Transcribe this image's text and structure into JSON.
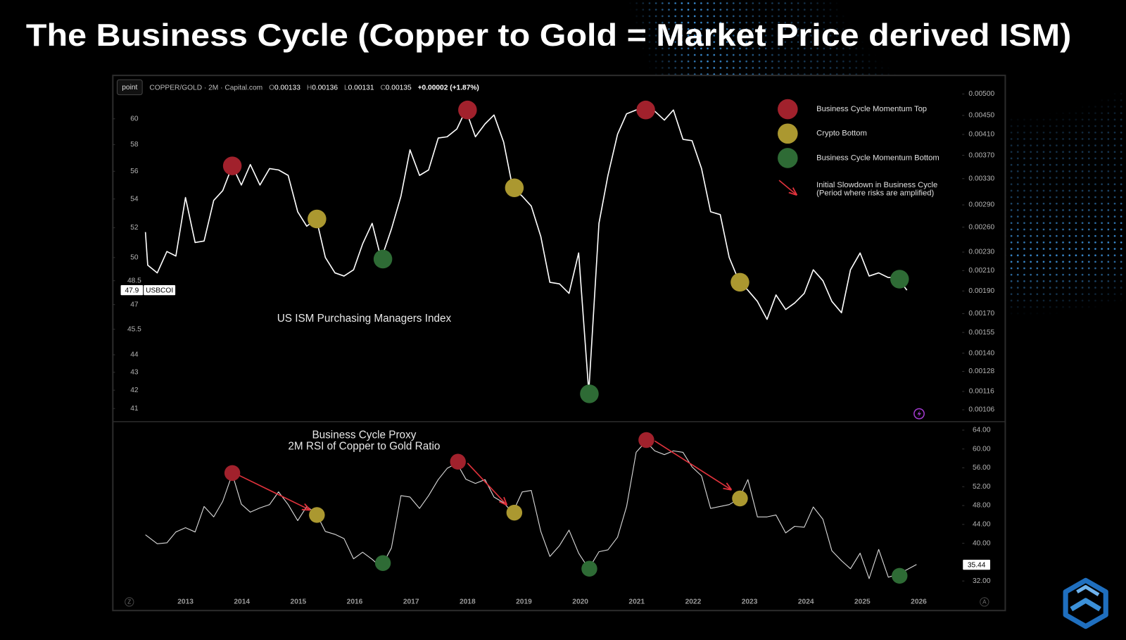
{
  "title": "The Business Cycle (Copper to Gold = Market Price derived ISM)",
  "header": {
    "button": "point",
    "symbol": "COPPER/GOLD · 2M · Capital.com",
    "ohlc": [
      {
        "key": "O",
        "value": "0.00133"
      },
      {
        "key": "H",
        "value": "0.00136"
      },
      {
        "key": "L",
        "value": "0.00131"
      },
      {
        "key": "C",
        "value": "0.00135"
      }
    ],
    "change": "+0.00002 (+1.87%)"
  },
  "controls": {
    "left": "Z",
    "right": "A"
  },
  "chart_data": [
    {
      "type": "line",
      "caption": "US ISM Purchasing Managers Index",
      "x": [
        2012.29,
        2012.33,
        2012.5,
        2012.67,
        2012.83,
        2013.0,
        2013.17,
        2013.33,
        2013.5,
        2013.66,
        2013.83,
        2013.99,
        2014.15,
        2014.32,
        2014.49,
        2014.65,
        2014.82,
        2014.99,
        2015.15,
        2015.32,
        2015.48,
        2015.65,
        2015.81,
        2015.98,
        2016.14,
        2016.31,
        2016.47,
        2016.65,
        2016.82,
        2016.98,
        2017.15,
        2017.31,
        2017.48,
        2017.64,
        2017.81,
        2017.97,
        2018.14,
        2018.31,
        2018.47,
        2018.64,
        2018.8,
        2018.97,
        2019.13,
        2019.3,
        2019.46,
        2019.63,
        2019.8,
        2019.97,
        2020.15,
        2020.33,
        2020.49,
        2020.66,
        2020.82,
        2020.99,
        2021.16,
        2021.32,
        2021.49,
        2021.65,
        2021.82,
        2021.98,
        2022.15,
        2022.31,
        2022.48,
        2022.64,
        2022.81,
        2022.97,
        2023.14,
        2023.31,
        2023.47,
        2023.64,
        2023.8,
        2023.97,
        2024.13,
        2024.3,
        2024.46,
        2024.63,
        2024.79,
        2024.96,
        2025.12,
        2025.29,
        2025.46,
        2025.62,
        2025.79
      ],
      "series": [
        {
          "name": "USBCOI",
          "color": "#ffffff",
          "values": [
            51.7,
            49.5,
            49.0,
            50.4,
            50.1,
            54.1,
            51.0,
            51.1,
            53.9,
            54.6,
            56.4,
            55.0,
            56.5,
            55.0,
            56.2,
            56.1,
            55.7,
            53.1,
            52.1,
            52.6,
            50.0,
            49.0,
            48.8,
            49.2,
            50.9,
            52.3,
            49.9,
            51.9,
            54.2,
            57.6,
            55.7,
            56.1,
            58.5,
            58.6,
            59.2,
            60.7,
            58.6,
            59.6,
            60.3,
            58.2,
            54.8,
            54.2,
            53.5,
            51.4,
            48.4,
            48.3,
            47.7,
            50.3,
            41.9,
            52.3,
            55.7,
            58.8,
            60.4,
            60.7,
            60.7,
            60.6,
            59.9,
            60.7,
            58.4,
            58.3,
            56.2,
            53.1,
            52.9,
            50.0,
            48.5,
            47.9,
            47.2,
            46.1,
            47.6,
            46.7,
            47.1,
            47.7,
            49.2,
            48.5,
            47.2,
            46.5,
            49.2,
            50.3,
            48.8,
            49.0,
            48.7,
            48.7,
            47.9
          ]
        }
      ],
      "last_value": 47.9,
      "xlim": [
        2011.75,
        2026.77
      ],
      "ylim": [
        40.3,
        63.4
      ],
      "ylog": true,
      "yticks": [
        60,
        58,
        56,
        54,
        52,
        50,
        48.5,
        47,
        45.5,
        44,
        43,
        42,
        41
      ],
      "y2lim": [
        0.001,
        0.00544
      ],
      "y2log": true,
      "y2ticks": [
        {
          "value": 0.005,
          "label": "0.00500"
        },
        {
          "value": 0.0045,
          "label": "0.00450"
        },
        {
          "value": 0.0041,
          "label": "0.00410"
        },
        {
          "value": 0.0037,
          "label": "0.00370"
        },
        {
          "value": 0.0033,
          "label": "0.00330"
        },
        {
          "value": 0.0029,
          "label": "0.00290"
        },
        {
          "value": 0.0026,
          "label": "0.00260"
        },
        {
          "value": 0.0023,
          "label": "0.00230"
        },
        {
          "value": 0.0021,
          "label": "0.00210"
        },
        {
          "value": 0.0019,
          "label": "0.00190"
        },
        {
          "value": 0.0017,
          "label": "0.00170"
        },
        {
          "value": 0.00155,
          "label": "0.00155"
        },
        {
          "value": 0.0014,
          "label": "0.00140"
        },
        {
          "value": 0.00128,
          "label": "0.00128"
        },
        {
          "value": 0.00116,
          "label": "0.00116"
        },
        {
          "value": 0.00106,
          "label": "0.00106"
        }
      ],
      "marker_groups": [
        {
          "name": "Business Cycle Momentum Top",
          "color": "#a1212c",
          "x": [
            2013.83,
            2018.0,
            2021.16
          ],
          "y": [
            56.4,
            60.7,
            60.7
          ]
        },
        {
          "name": "Crypto Bottom",
          "color": "#ab9830",
          "x": [
            2015.33,
            2018.83,
            2022.83
          ],
          "y": [
            52.6,
            54.8,
            48.4
          ]
        },
        {
          "name": "Business Cycle Momentum Bottom",
          "color": "#2e6b35",
          "x": [
            2016.5,
            2020.16,
            2025.66
          ],
          "y": [
            49.9,
            41.8,
            48.6
          ]
        }
      ],
      "arrow_legend": {
        "color": "#e0323c",
        "label": [
          "Initial Slowdown in Business Cycle",
          "(Period where risks are amplified)"
        ]
      }
    },
    {
      "type": "line",
      "caption": [
        "Business Cycle Proxy",
        "2M RSI of Copper to Gold Ratio"
      ],
      "x": [
        2012.29,
        2012.5,
        2012.67,
        2012.83,
        2013.0,
        2013.17,
        2013.33,
        2013.5,
        2013.66,
        2013.83,
        2013.99,
        2014.15,
        2014.32,
        2014.49,
        2014.65,
        2014.82,
        2014.99,
        2015.15,
        2015.32,
        2015.48,
        2015.65,
        2015.81,
        2015.98,
        2016.14,
        2016.31,
        2016.47,
        2016.65,
        2016.82,
        2016.98,
        2017.15,
        2017.31,
        2017.48,
        2017.64,
        2017.81,
        2017.97,
        2018.14,
        2018.31,
        2018.47,
        2018.64,
        2018.8,
        2018.97,
        2019.13,
        2019.3,
        2019.46,
        2019.63,
        2019.8,
        2019.97,
        2020.15,
        2020.33,
        2020.49,
        2020.66,
        2020.82,
        2020.99,
        2021.16,
        2021.32,
        2021.49,
        2021.65,
        2021.82,
        2021.98,
        2022.15,
        2022.31,
        2022.48,
        2022.64,
        2022.81,
        2022.97,
        2023.14,
        2023.31,
        2023.47,
        2023.64,
        2023.8,
        2023.97,
        2024.13,
        2024.3,
        2024.46,
        2024.63,
        2024.79,
        2024.96,
        2025.12,
        2025.29,
        2025.46,
        2025.62,
        2025.79,
        2025.96
      ],
      "series": [
        {
          "color": "#d9d9d9",
          "values": [
            41.8,
            39.9,
            40.1,
            42.4,
            43.3,
            42.4,
            47.8,
            45.6,
            48.9,
            54.7,
            48.3,
            46.6,
            47.5,
            48.2,
            50.9,
            48.2,
            44.8,
            47.8,
            46.3,
            42.5,
            41.9,
            41.0,
            36.7,
            38.1,
            36.6,
            34.9,
            39.0,
            50.1,
            49.8,
            47.4,
            50.1,
            53.5,
            55.9,
            57.0,
            53.6,
            52.7,
            53.5,
            49.8,
            48.6,
            46.5,
            50.9,
            51.2,
            42.5,
            37.2,
            39.5,
            42.8,
            37.9,
            34.6,
            38.2,
            38.6,
            41.3,
            47.8,
            59.3,
            61.6,
            59.6,
            58.8,
            59.6,
            59.3,
            56.2,
            54.3,
            47.4,
            47.8,
            48.2,
            49.4,
            53.5,
            45.6,
            45.6,
            46.0,
            42.2,
            43.6,
            43.4,
            47.7,
            45.1,
            38.4,
            36.3,
            34.6,
            37.9,
            32.5,
            38.7,
            32.8,
            33.4,
            34.4,
            35.5
          ]
        }
      ],
      "last_value": 35.44,
      "xlim": [
        2011.75,
        2026.77
      ],
      "xticks": [
        2013,
        2014,
        2015,
        2016,
        2017,
        2018,
        2019,
        2020,
        2021,
        2022,
        2023,
        2024,
        2025,
        2026
      ],
      "ylim": [
        30.3,
        65.8
      ],
      "yticks": [
        {
          "value": 64,
          "label": "64.00"
        },
        {
          "value": 60,
          "label": "60.00"
        },
        {
          "value": 56,
          "label": "56.00"
        },
        {
          "value": 52,
          "label": "52.00"
        },
        {
          "value": 48,
          "label": "48.00"
        },
        {
          "value": 44,
          "label": "44.00"
        },
        {
          "value": 40,
          "label": "40.00"
        },
        {
          "value": 32,
          "label": "32.00"
        }
      ],
      "marker_groups": [
        {
          "color": "#a1212c",
          "x": [
            2013.83,
            2017.83,
            2021.17
          ],
          "y": [
            54.9,
            57.3,
            61.9
          ]
        },
        {
          "color": "#ab9830",
          "x": [
            2015.33,
            2018.83,
            2022.83
          ],
          "y": [
            46.0,
            46.5,
            49.5
          ]
        },
        {
          "color": "#2e6b35",
          "x": [
            2016.5,
            2020.16,
            2025.66
          ],
          "y": [
            35.8,
            34.6,
            33.1
          ]
        }
      ],
      "arrows": [
        {
          "x": [
            2013.95,
            2015.2
          ],
          "y": [
            54.4,
            47.1
          ]
        },
        {
          "x": [
            2018.0,
            2018.69
          ],
          "y": [
            57.0,
            48.2
          ]
        },
        {
          "x": [
            2021.32,
            2022.67
          ],
          "y": [
            61.7,
            51.4
          ]
        }
      ],
      "arrow_color": "#e0323c"
    }
  ]
}
